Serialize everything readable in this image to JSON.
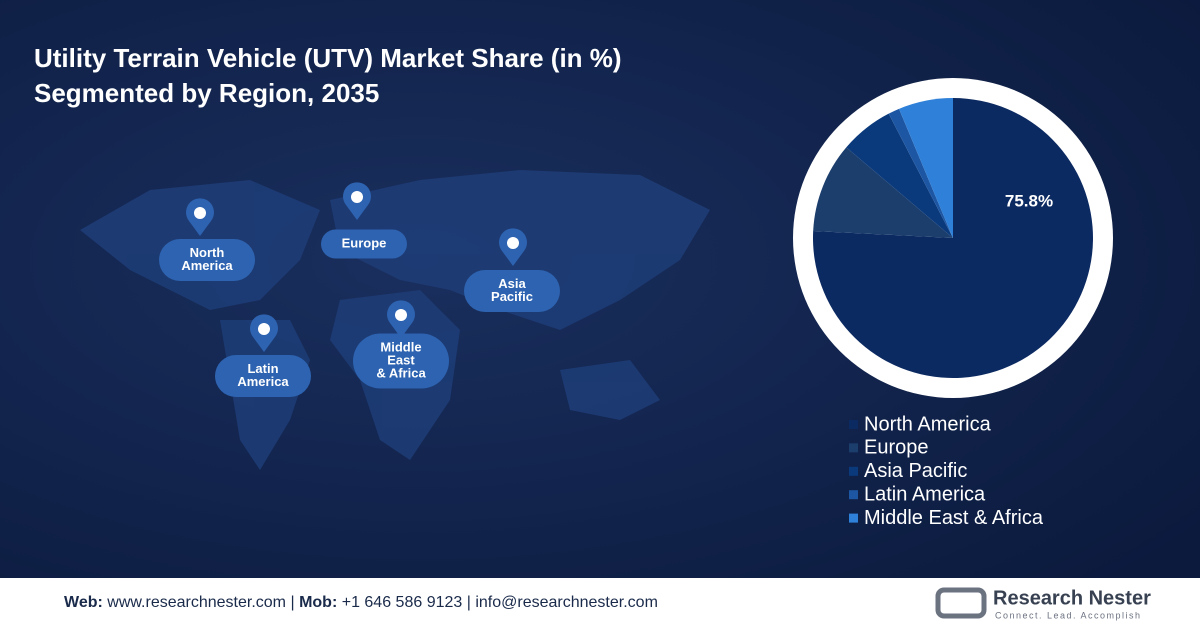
{
  "chart_data": {
    "type": "pie",
    "title": "Utility Terrain Vehicle (UTV) Market Share (in %)",
    "subtitle": "Segmented by Region, 2035",
    "categories": [
      "North America",
      "Europe",
      "Asia Pacific",
      "Latin America",
      "Middle East & Africa"
    ],
    "values": [
      75.8,
      10.4,
      6.2,
      1.3,
      6.3
    ],
    "value_labels": [
      "75.8%",
      null,
      null,
      null,
      null
    ],
    "colors": [
      "#0c2a62",
      "#1c3e6d",
      "#0a3a7c",
      "#1d56a3",
      "#2f80d8"
    ]
  },
  "map_labels": [
    [
      "North",
      "America"
    ],
    [
      "Europe"
    ],
    [
      "Asia",
      "Pacific"
    ],
    [
      "Latin",
      "America"
    ],
    [
      "Middle",
      "East",
      "& Africa"
    ]
  ],
  "footer": {
    "web_label": "Web:",
    "web": "www.researchnester.com",
    "sep1": "|",
    "mob_label": "Mob:",
    "mob": "+1 646 586 9123",
    "sep2": "|",
    "email": "info@researchnester.com"
  },
  "logo": {
    "name": "Research Nester",
    "tagline": "Connect. Lead. Accomplish"
  }
}
